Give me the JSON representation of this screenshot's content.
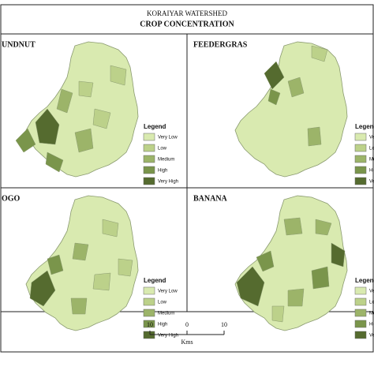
{
  "header": {
    "title": "KORAIYAR WATERSHED",
    "subtitle": "CROP CONCENTRATION"
  },
  "legend_classes": [
    {
      "label": "Very Low",
      "color": "#d9eab0"
    },
    {
      "label": "Low",
      "color": "#bcd18a"
    },
    {
      "label": "Medium",
      "color": "#9cb469"
    },
    {
      "label": "High",
      "color": "#7a954b"
    },
    {
      "label": "Very High",
      "color": "#556b2f"
    }
  ],
  "panels": [
    {
      "title": "UNDNUT",
      "legend_title": "Legend"
    },
    {
      "title": "FEEDERGRAS",
      "legend_title": "Legend"
    },
    {
      "title": "OGO",
      "legend_title": "Legend"
    },
    {
      "title": "BANANA",
      "legend_title": "Legend"
    }
  ],
  "scale_bar": {
    "ticks": [
      10,
      0,
      10
    ],
    "unit": "Kms"
  }
}
